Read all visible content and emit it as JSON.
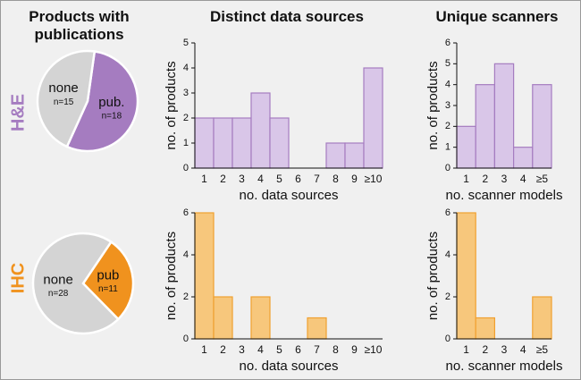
{
  "column_titles": [
    "Products with publications",
    "Distinct data sources",
    "Unique scanners"
  ],
  "row_labels": [
    "H&E",
    "IHC"
  ],
  "chart_data": [
    {
      "type": "pie",
      "categories": [
        "none",
        "pub."
      ],
      "values": [
        15,
        18
      ],
      "value_labels": [
        "n=15",
        "n=18"
      ],
      "colors": [
        "#d4d4d4",
        "#a57cc0"
      ]
    },
    {
      "type": "bar",
      "categories": [
        "1",
        "2",
        "3",
        "4",
        "5",
        "6",
        "7",
        "8",
        "9",
        "≥10"
      ],
      "values": [
        2,
        2,
        2,
        3,
        2,
        0,
        0,
        1,
        1,
        4
      ],
      "xlabel": "no. data sources",
      "ylabel": "no. of products",
      "ylim": [
        0,
        5
      ],
      "yticks": [
        0,
        1,
        2,
        3,
        4,
        5
      ],
      "color": "#d9c6e8",
      "edge_color": "#a57cc0"
    },
    {
      "type": "bar",
      "categories": [
        "1",
        "2",
        "3",
        "4",
        "≥5"
      ],
      "values": [
        2,
        4,
        5,
        1,
        4
      ],
      "xlabel": "no. scanner models",
      "ylabel": "no. of products",
      "ylim": [
        0,
        6
      ],
      "yticks": [
        0,
        1,
        2,
        3,
        4,
        5,
        6
      ],
      "color": "#d9c6e8",
      "edge_color": "#a57cc0"
    },
    {
      "type": "pie",
      "categories": [
        "none",
        "pub"
      ],
      "values": [
        28,
        11
      ],
      "value_labels": [
        "n=28",
        "n=11"
      ],
      "colors": [
        "#d4d4d4",
        "#f0921e"
      ]
    },
    {
      "type": "bar",
      "categories": [
        "1",
        "2",
        "3",
        "4",
        "5",
        "6",
        "7",
        "8",
        "9",
        "≥10"
      ],
      "values": [
        6,
        2,
        0,
        2,
        0,
        0,
        1,
        0,
        0,
        0
      ],
      "xlabel": "no. data sources",
      "ylabel": "no. of products",
      "ylim": [
        0,
        6
      ],
      "yticks": [
        0,
        2,
        4,
        6
      ],
      "color": "#f7c77c",
      "edge_color": "#f0a030"
    },
    {
      "type": "bar",
      "categories": [
        "1",
        "2",
        "3",
        "4",
        "≥5"
      ],
      "values": [
        6,
        1,
        0,
        0,
        2
      ],
      "xlabel": "no. scanner models",
      "ylabel": "no. of products",
      "ylim": [
        0,
        6
      ],
      "yticks": [
        0,
        2,
        4,
        6
      ],
      "color": "#f7c77c",
      "edge_color": "#f0a030"
    }
  ]
}
